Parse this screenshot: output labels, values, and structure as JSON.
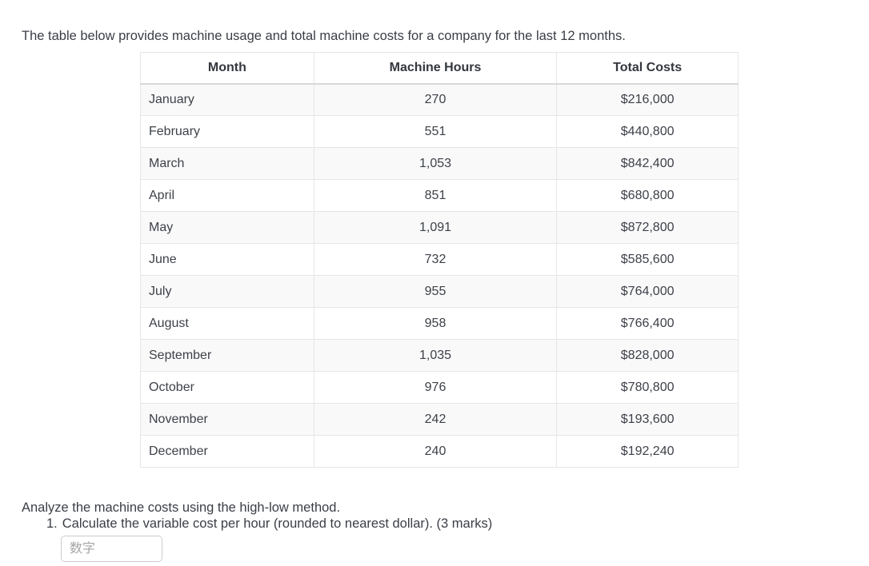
{
  "intro": "The table below provides machine usage and total machine costs for a company for the last 12 months.",
  "table": {
    "headers": {
      "month": "Month",
      "hours": "Machine Hours",
      "cost": "Total Costs"
    },
    "rows": [
      {
        "month": "January",
        "hours": "270",
        "cost": "$216,000"
      },
      {
        "month": "February",
        "hours": "551",
        "cost": "$440,800"
      },
      {
        "month": "March",
        "hours": "1,053",
        "cost": "$842,400"
      },
      {
        "month": "April",
        "hours": "851",
        "cost": "$680,800"
      },
      {
        "month": "May",
        "hours": "1,091",
        "cost": "$872,800"
      },
      {
        "month": "June",
        "hours": "732",
        "cost": "$585,600"
      },
      {
        "month": "July",
        "hours": "955",
        "cost": "$764,000"
      },
      {
        "month": "August",
        "hours": "958",
        "cost": "$766,400"
      },
      {
        "month": "September",
        "hours": "1,035",
        "cost": "$828,000"
      },
      {
        "month": "October",
        "hours": "976",
        "cost": "$780,800"
      },
      {
        "month": "November",
        "hours": "242",
        "cost": "$193,600"
      },
      {
        "month": "December",
        "hours": "240",
        "cost": "$192,240"
      }
    ]
  },
  "analysis": {
    "instruction": "Analyze the machine costs using the high-low method.",
    "question_number": "1.",
    "question_text": "Calculate the variable cost per hour (rounded to nearest dollar). (3 marks)"
  },
  "answer": {
    "value": "",
    "placeholder": "数字"
  },
  "colors": {
    "row_stripe": "#f9f9f9",
    "table_border": "#e6e6e6",
    "header_bottom_border": "#d8d8d8",
    "text": "#3a3e45",
    "placeholder": "#a6a6a6"
  }
}
